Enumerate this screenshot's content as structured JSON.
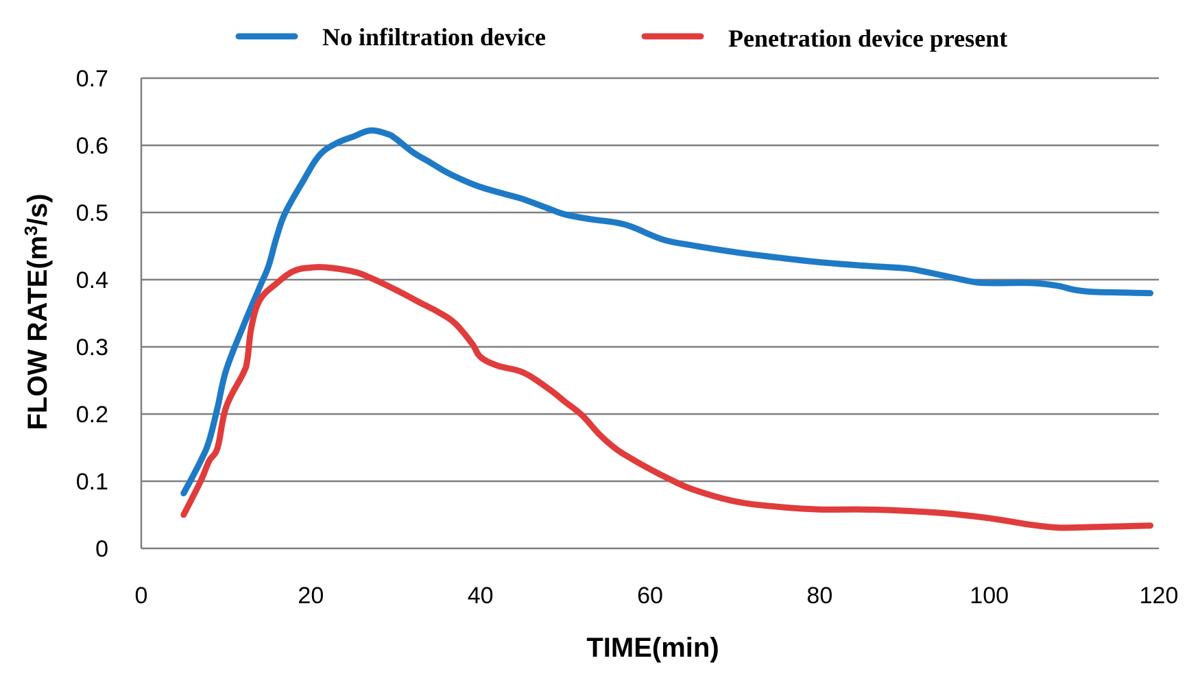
{
  "chart_data": {
    "type": "line",
    "title": "",
    "xlabel": "TIME(min)",
    "ylabel_main": "FLOW RATE(m",
    "ylabel_sup": "3",
    "ylabel_end": "/s)",
    "xlim": [
      0,
      120
    ],
    "ylim": [
      0,
      0.7
    ],
    "xticks": [
      0,
      20,
      40,
      60,
      80,
      100,
      120
    ],
    "yticks": [
      0,
      0.1,
      0.2,
      0.3,
      0.4,
      0.5,
      0.6,
      0.7
    ],
    "xtick_labels": [
      "0",
      "20",
      "40",
      "60",
      "80",
      "100",
      "120"
    ],
    "ytick_labels": [
      "0",
      "0.1",
      "0.2",
      "0.3",
      "0.4",
      "0.5",
      "0.6",
      "0.7"
    ],
    "grid": true,
    "legend_position": "top",
    "series": [
      {
        "name": "No infiltration device",
        "color": "#1f7ac6",
        "x": [
          5,
          7,
          8,
          9,
          10,
          12,
          14,
          15,
          16,
          17,
          19,
          21,
          23,
          25,
          27,
          29,
          30,
          32,
          34,
          36,
          38,
          40,
          43,
          45,
          48,
          50,
          53,
          56,
          58,
          60,
          62,
          65,
          70,
          75,
          80,
          85,
          90,
          92,
          95,
          98,
          100,
          105,
          108,
          110,
          112,
          115,
          119
        ],
        "values": [
          0.082,
          0.13,
          0.16,
          0.21,
          0.265,
          0.33,
          0.39,
          0.42,
          0.465,
          0.5,
          0.545,
          0.585,
          0.603,
          0.613,
          0.622,
          0.617,
          0.61,
          0.59,
          0.575,
          0.56,
          0.548,
          0.538,
          0.527,
          0.52,
          0.506,
          0.497,
          0.49,
          0.485,
          0.478,
          0.467,
          0.458,
          0.451,
          0.441,
          0.433,
          0.426,
          0.421,
          0.417,
          0.413,
          0.405,
          0.397,
          0.395,
          0.395,
          0.391,
          0.385,
          0.382,
          0.381,
          0.38
        ]
      },
      {
        "name": "Penetration device present",
        "color": "#e03c3c",
        "x": [
          5,
          7,
          8,
          9,
          10,
          12,
          12.5,
          13,
          14,
          16,
          18,
          20,
          22,
          25,
          27,
          30,
          33,
          35,
          37,
          39,
          40,
          42,
          45,
          48,
          50,
          52,
          54,
          56,
          58,
          60,
          62,
          65,
          70,
          75,
          80,
          85,
          90,
          95,
          100,
          105,
          108,
          110,
          113,
          116,
          119
        ],
        "values": [
          0.05,
          0.1,
          0.13,
          0.15,
          0.21,
          0.26,
          0.28,
          0.33,
          0.37,
          0.395,
          0.413,
          0.418,
          0.418,
          0.412,
          0.403,
          0.385,
          0.365,
          0.352,
          0.335,
          0.305,
          0.285,
          0.272,
          0.262,
          0.238,
          0.218,
          0.198,
          0.17,
          0.148,
          0.132,
          0.118,
          0.105,
          0.088,
          0.07,
          0.062,
          0.058,
          0.058,
          0.056,
          0.052,
          0.045,
          0.035,
          0.031,
          0.031,
          0.032,
          0.033,
          0.034
        ]
      }
    ]
  }
}
